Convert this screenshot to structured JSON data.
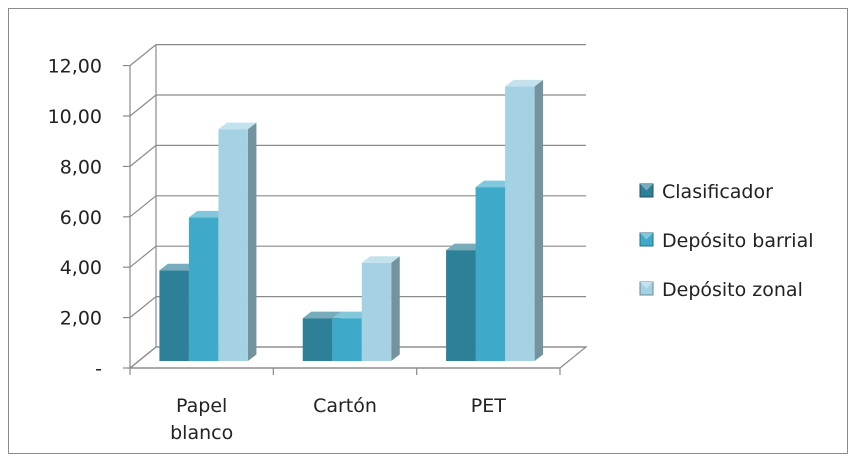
{
  "chart_data": {
    "type": "bar",
    "title": "",
    "xlabel": "",
    "ylabel": "",
    "categories": [
      [
        "Papel",
        "blanco"
      ],
      [
        "Cartón"
      ],
      [
        "PET"
      ]
    ],
    "series": [
      {
        "name": "Clasificador",
        "values": [
          3.6,
          1.7,
          4.4
        ],
        "color": "#2E7F98"
      },
      {
        "name": "Depósito barrial",
        "values": [
          5.7,
          1.7,
          6.9
        ],
        "color": "#3EA9C9"
      },
      {
        "name": "Depósito zonal",
        "values": [
          9.2,
          3.9,
          10.9
        ],
        "color": "#A4D2E3"
      }
    ],
    "ylim": [
      0,
      12
    ],
    "yticks": [
      {
        "value": 0,
        "label": "-"
      },
      {
        "value": 2,
        "label": "2,00"
      },
      {
        "value": 4,
        "label": "4,00"
      },
      {
        "value": 6,
        "label": "6,00"
      },
      {
        "value": 8,
        "label": "8,00"
      },
      {
        "value": 10,
        "label": "10,00"
      },
      {
        "value": 12,
        "label": "12,00"
      }
    ],
    "grid": true,
    "three_d": true,
    "legend_position": "right"
  }
}
